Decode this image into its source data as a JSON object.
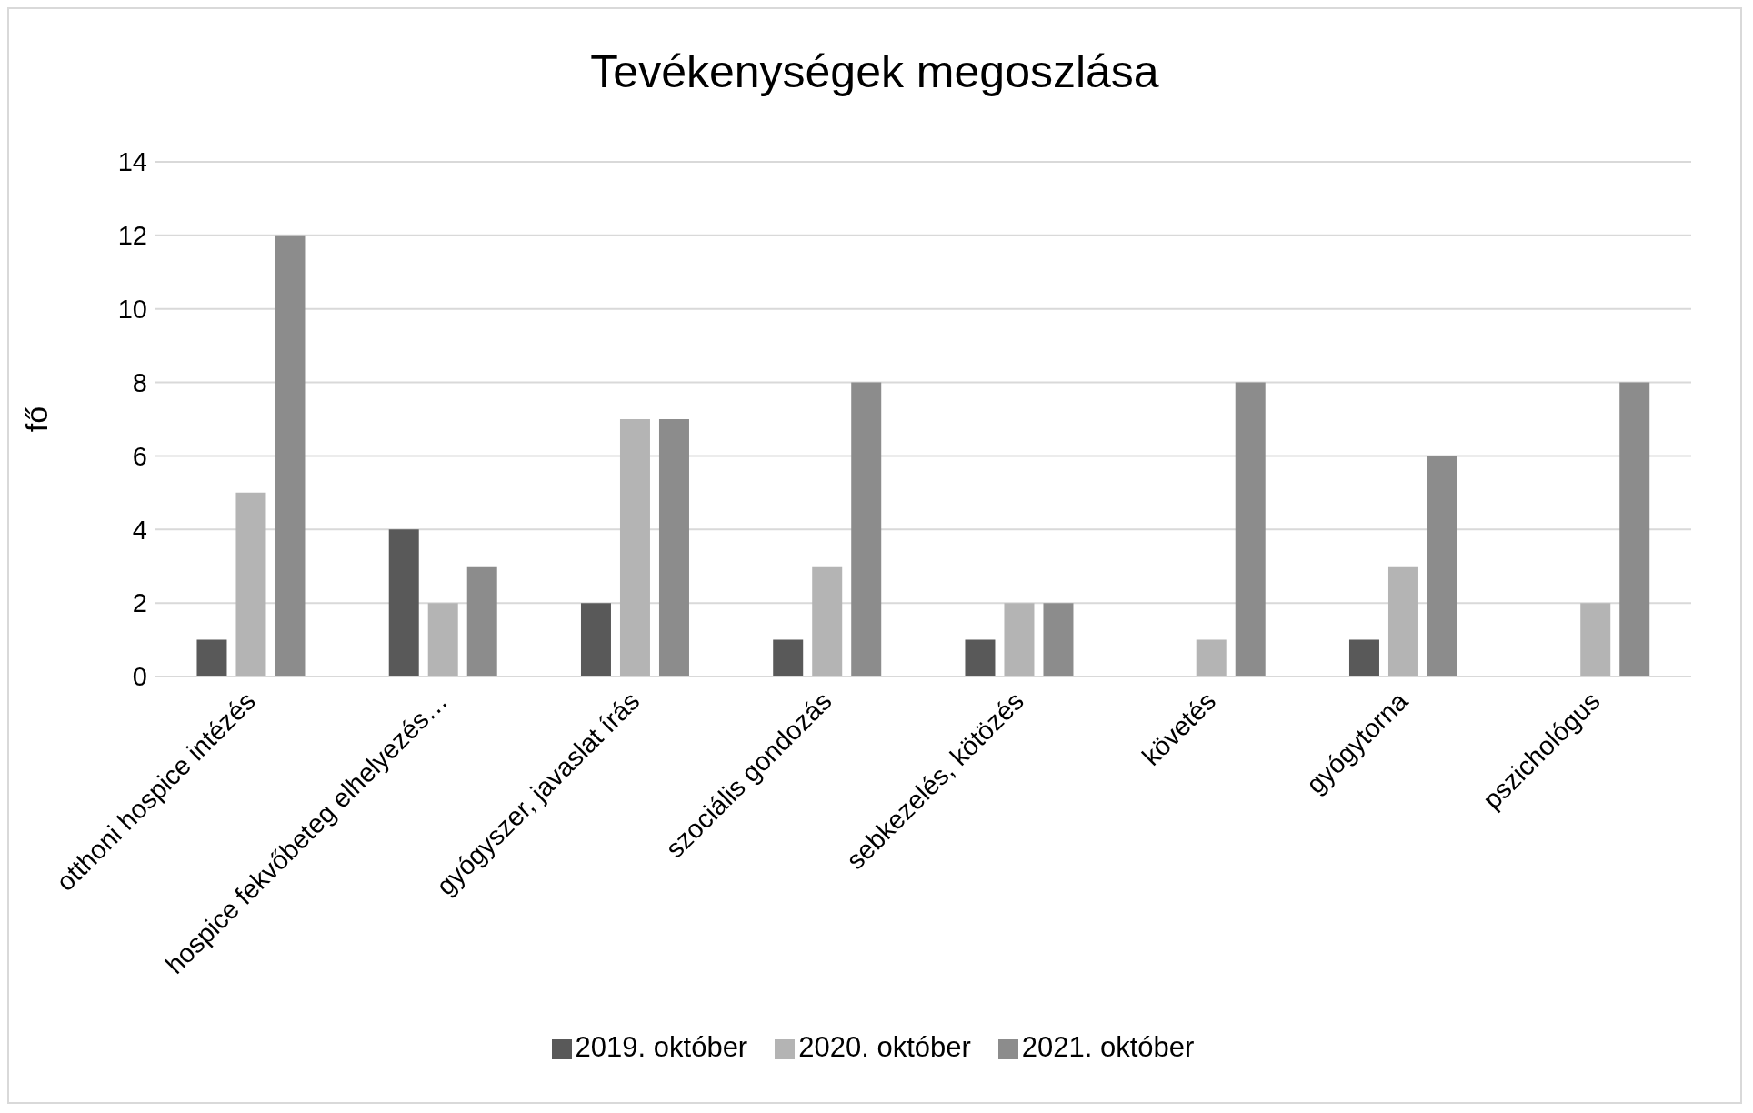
{
  "chart_data": {
    "type": "bar",
    "title": "Tevékenységek megoszlása",
    "ylabel": "fő",
    "categories": [
      "otthoni hospice intézés",
      "hospice fekvőbeteg elhelyezés…",
      "gyógyszer, javaslat írás",
      "szociális gondozás",
      "sebkezelés, kötözés",
      "követés",
      "gyógytorna",
      "pszichológus"
    ],
    "series": [
      {
        "name": "2019. október",
        "color": "#595959",
        "values": [
          1,
          4,
          2,
          1,
          1,
          null,
          1,
          null
        ]
      },
      {
        "name": "2020. október",
        "color": "#b4b4b4",
        "values": [
          5,
          2,
          7,
          3,
          2,
          1,
          3,
          2
        ]
      },
      {
        "name": "2021. október",
        "color": "#8c8c8c",
        "values": [
          12,
          3,
          7,
          8,
          2,
          8,
          6,
          8
        ]
      }
    ],
    "ylim": [
      0,
      14
    ],
    "yticks": [
      0,
      2,
      4,
      6,
      8,
      10,
      12,
      14
    ],
    "grid": "y",
    "legend": "bottom"
  }
}
